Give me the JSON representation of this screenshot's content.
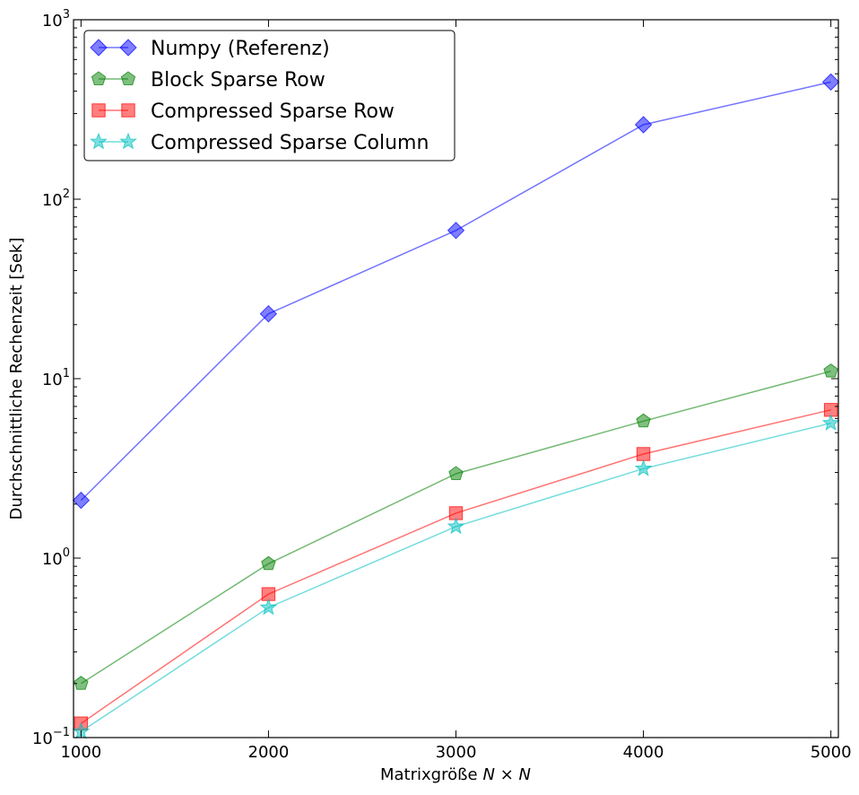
{
  "chart_data": {
    "type": "line",
    "title": "",
    "xlabel": "Matrixgröße",
    "xlabel_math": "N × N",
    "ylabel": "Durchschnittliche Rechenzeit [Sek]",
    "yscale": "log",
    "xlim": [
      960,
      5040
    ],
    "ylim": [
      0.1,
      1000
    ],
    "x": [
      1000,
      2000,
      3000,
      4000,
      5000
    ],
    "x_ticks": [
      1000,
      2000,
      3000,
      4000,
      5000
    ],
    "x_tick_labels": [
      "1000",
      "2000",
      "3000",
      "4000",
      "5000"
    ],
    "y_ticks": [
      {
        "value": 0.1,
        "base": "10",
        "exp": "−1"
      },
      {
        "value": 1,
        "base": "10",
        "exp": "0"
      },
      {
        "value": 10,
        "base": "10",
        "exp": "1"
      },
      {
        "value": 100,
        "base": "10",
        "exp": "2"
      },
      {
        "value": 1000,
        "base": "10",
        "exp": "3"
      }
    ],
    "grid": false,
    "legend_position": "top-left",
    "series": [
      {
        "name": "Numpy (Referenz)",
        "color": "#0000ff",
        "marker": "diamond",
        "values": [
          2.1,
          23,
          67,
          260,
          450
        ]
      },
      {
        "name": "Block Sparse Row",
        "color": "#008000",
        "marker": "pentagon",
        "values": [
          0.2,
          0.93,
          2.95,
          5.8,
          11
        ]
      },
      {
        "name": "Compressed Sparse Row",
        "color": "#ff0000",
        "marker": "square",
        "values": [
          0.12,
          0.63,
          1.78,
          3.8,
          6.7
        ]
      },
      {
        "name": "Compressed Sparse Column",
        "color": "#00bfbf",
        "marker": "star",
        "values": [
          0.108,
          0.53,
          1.5,
          3.15,
          5.65
        ]
      }
    ]
  }
}
